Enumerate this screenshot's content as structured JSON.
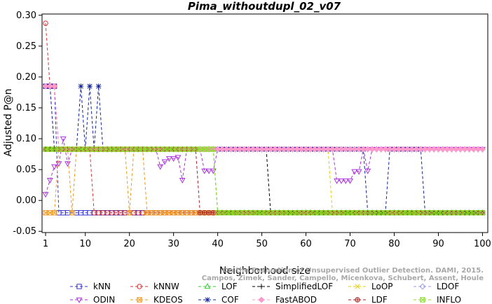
{
  "chart_data": {
    "type": "line",
    "title": "Pima_withoutdupl_02_v07",
    "xlabel": "Neighborhood size",
    "ylabel": "Adjusted P@n",
    "xlim": [
      1,
      100
    ],
    "ylim": [
      -0.05,
      0.3
    ],
    "xticks": [
      1,
      10,
      20,
      30,
      40,
      50,
      60,
      70,
      80,
      90,
      100
    ],
    "yticks": [
      "-0.05",
      "0.00",
      "0.05",
      "0.10",
      "0.15",
      "0.20",
      "0.25",
      "0.30"
    ],
    "grid": false,
    "legend_position": "bottom",
    "watermark": {
      "line1": "Campos, Zimek, Sander, Campello, Micenkova, Schubert, Assent, Houle",
      "line2": "On the Evaluation of Unsupervised Outlier Detection. DAMI, 2015."
    },
    "series": [
      {
        "name": "kNN",
        "color": "#3333cc",
        "marker": "square",
        "segments": [
          [
            1,
            0.185
          ],
          [
            3,
            0.185
          ],
          [
            4,
            -0.02
          ],
          [
            100,
            -0.02
          ]
        ]
      },
      {
        "name": "kNNW",
        "color": "#dd3333",
        "marker": "circle",
        "segments": [
          [
            1,
            0.287
          ],
          [
            2,
            0.185
          ],
          [
            3,
            0.185
          ],
          [
            4,
            0.083
          ],
          [
            11,
            0.083
          ],
          [
            12,
            -0.02
          ],
          [
            100,
            -0.02
          ]
        ]
      },
      {
        "name": "LOF",
        "color": "#33cc33",
        "marker": "triangle-up",
        "segments": [
          [
            1,
            0.083
          ],
          [
            39,
            0.083
          ],
          [
            40,
            -0.02
          ],
          [
            100,
            -0.02
          ]
        ]
      },
      {
        "name": "SimplifiedLOF",
        "color": "#000000",
        "marker": "plus",
        "segments": [
          [
            1,
            0.083
          ],
          [
            51,
            0.083
          ],
          [
            52,
            -0.02
          ],
          [
            100,
            -0.02
          ]
        ]
      },
      {
        "name": "LoOP",
        "color": "#e6cc00",
        "marker": "x",
        "segments": [
          [
            1,
            0.083
          ],
          [
            65,
            0.083
          ],
          [
            66,
            -0.02
          ],
          [
            100,
            -0.02
          ]
        ]
      },
      {
        "name": "LDOF",
        "color": "#9999ee",
        "marker": "diamond",
        "segments": [
          [
            1,
            0.185
          ],
          [
            2,
            0.185
          ],
          [
            3,
            0.083
          ],
          [
            100,
            0.083
          ]
        ]
      },
      {
        "name": "ODIN",
        "color": "#aa33dd",
        "marker": "triangle-down",
        "segments": [
          [
            1,
            0.01
          ],
          [
            2,
            0.033
          ],
          [
            3,
            0.055
          ],
          [
            4,
            0.06
          ],
          [
            5,
            0.1
          ],
          [
            6,
            0.06
          ],
          [
            7,
            0.083
          ],
          [
            26,
            0.083
          ],
          [
            27,
            0.055
          ],
          [
            28,
            0.063
          ],
          [
            29,
            0.068
          ],
          [
            30,
            0.068
          ],
          [
            31,
            0.07
          ],
          [
            32,
            0.033
          ],
          [
            33,
            0.083
          ],
          [
            36,
            0.083
          ],
          [
            37,
            0.048
          ],
          [
            38,
            0.048
          ],
          [
            39,
            0.048
          ],
          [
            40,
            0.083
          ],
          [
            66,
            0.083
          ],
          [
            67,
            0.032
          ],
          [
            68,
            0.032
          ],
          [
            69,
            0.032
          ],
          [
            70,
            0.032
          ],
          [
            71,
            0.047
          ],
          [
            72,
            0.047
          ],
          [
            73,
            0.083
          ],
          [
            74,
            0.048
          ],
          [
            75,
            0.083
          ],
          [
            100,
            0.083
          ]
        ]
      },
      {
        "name": "KDEOS",
        "color": "#ee9922",
        "marker": "square-x",
        "segments": [
          [
            1,
            -0.02
          ],
          [
            3,
            -0.02
          ],
          [
            4,
            0.083
          ],
          [
            6,
            0.083
          ],
          [
            7,
            -0.02
          ],
          [
            8,
            0.083
          ],
          [
            19,
            0.083
          ],
          [
            20,
            -0.02
          ],
          [
            21,
            0.083
          ],
          [
            23,
            0.083
          ],
          [
            24,
            -0.02
          ],
          [
            100,
            -0.02
          ]
        ]
      },
      {
        "name": "COF",
        "color": "#112299",
        "marker": "star",
        "segments": [
          [
            1,
            0.185
          ],
          [
            2,
            0.185
          ],
          [
            3,
            0.083
          ],
          [
            8,
            0.083
          ],
          [
            9,
            0.185
          ],
          [
            10,
            0.083
          ],
          [
            11,
            0.185
          ],
          [
            12,
            0.083
          ],
          [
            13,
            0.185
          ],
          [
            14,
            0.083
          ],
          [
            73,
            0.083
          ],
          [
            74,
            -0.02
          ],
          [
            78,
            -0.02
          ],
          [
            79,
            0.083
          ],
          [
            86,
            0.083
          ],
          [
            87,
            -0.02
          ],
          [
            100,
            -0.02
          ]
        ]
      },
      {
        "name": "FastABOD",
        "color": "#ff99cc",
        "marker": "diamond-filled",
        "segments": [
          [
            1,
            0.185
          ],
          [
            3,
            0.185
          ],
          [
            4,
            0.083
          ],
          [
            100,
            0.083
          ]
        ]
      },
      {
        "name": "LDF",
        "color": "#aa2222",
        "marker": "circle-plus",
        "segments": [
          [
            1,
            0.083
          ],
          [
            35,
            0.083
          ],
          [
            36,
            -0.02
          ],
          [
            100,
            -0.02
          ]
        ]
      },
      {
        "name": "INFLO",
        "color": "#88dd22",
        "marker": "square-x",
        "segments": [
          [
            1,
            0.083
          ],
          [
            39,
            0.083
          ],
          [
            40,
            -0.02
          ],
          [
            100,
            -0.02
          ]
        ]
      }
    ]
  }
}
